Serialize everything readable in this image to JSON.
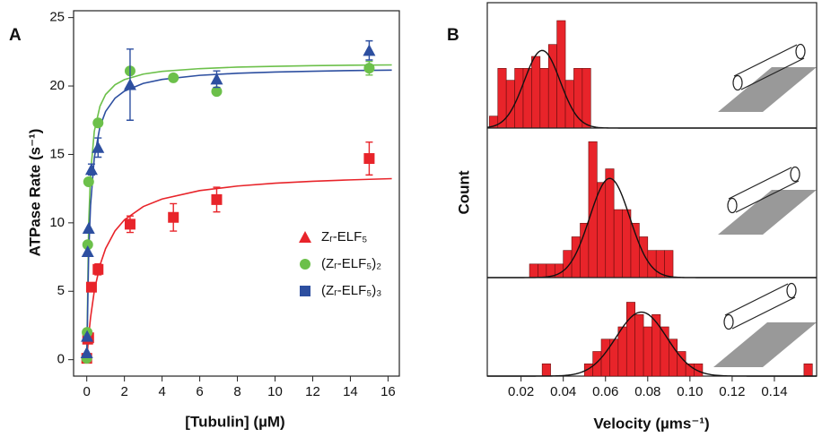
{
  "chart_data": [
    {
      "type": "scatter",
      "panel_label": "A",
      "x_label": "[Tubulin] (µM)",
      "y_label": "ATPase Rate (s⁻¹)",
      "xlim": [
        -0.7,
        16.6
      ],
      "ylim": [
        -1.2,
        25.5
      ],
      "xticks": [
        0,
        2,
        4,
        6,
        8,
        10,
        12,
        14,
        16
      ],
      "yticks": [
        0,
        5,
        10,
        15,
        20,
        25
      ],
      "series": [
        {
          "name": "Zᵣ-ELF₅",
          "color": "#e8242a",
          "marker": "triangle-legend-square",
          "x": [
            0,
            0.05,
            0.1,
            0.25,
            0.6,
            2.3,
            4.6,
            6.9,
            15
          ],
          "values": [
            0.1,
            1.5,
            1.6,
            5.3,
            6.6,
            9.9,
            10.4,
            11.7,
            14.7
          ],
          "errors": [
            null,
            0.3,
            0.3,
            0.3,
            0.4,
            0.6,
            1.0,
            0.9,
            1.2
          ],
          "fit": {
            "x": [
              0,
              0.1,
              0.2,
              0.4,
              0.7,
              1,
              1.5,
              2,
              3,
              4,
              6,
              8,
              10,
              12,
              14,
              16.2
            ],
            "values": [
              0,
              1.73,
              3.07,
              5.02,
              6.9,
              8.12,
              9.41,
              10.22,
              11.19,
              11.74,
              12.36,
              12.69,
              12.9,
              13.04,
              13.14,
              13.23
            ]
          }
        },
        {
          "name": "(Zᵣ-ELF₅)₂",
          "color": "#6cc04a",
          "marker": "circle",
          "x": [
            0,
            0.02,
            0.05,
            0.1,
            0.6,
            2.3,
            4.6,
            6.9,
            15
          ],
          "values": [
            0.1,
            2.0,
            8.4,
            13.0,
            17.3,
            21.1,
            20.6,
            19.6,
            21.3
          ],
          "errors": [
            null,
            null,
            null,
            null,
            null,
            null,
            null,
            null,
            0.5
          ],
          "fit": {
            "x": [
              0,
              0.1,
              0.2,
              0.4,
              0.7,
              1,
              1.5,
              2,
              3,
              4,
              6,
              8,
              10,
              12,
              14,
              16.2
            ],
            "values": [
              0,
              9.86,
              13.56,
              16.69,
              18.52,
              19.38,
              20.09,
              20.47,
              20.87,
              21.07,
              21.27,
              21.38,
              21.44,
              21.49,
              21.52,
              21.54
            ]
          }
        },
        {
          "name": "(Zᵣ-ELF₅)₃",
          "color": "#2d4fa0",
          "marker": "triangle",
          "x": [
            0,
            0.02,
            0.05,
            0.1,
            0.25,
            0.6,
            2.3,
            6.9,
            15
          ],
          "values": [
            0.5,
            1.7,
            7.9,
            9.6,
            13.9,
            15.5,
            20.1,
            20.5,
            22.6
          ],
          "errors": [
            null,
            null,
            null,
            null,
            0.4,
            0.7,
            2.6,
            0.6,
            0.7
          ],
          "fit": {
            "x": [
              0,
              0.1,
              0.2,
              0.4,
              0.7,
              1,
              1.5,
              2,
              3,
              4,
              6,
              8,
              10,
              12,
              14,
              16.2
            ],
            "values": [
              0,
              7.64,
              11.26,
              14.76,
              17.02,
              18.14,
              19.11,
              19.63,
              20.19,
              20.48,
              20.78,
              20.93,
              21.02,
              21.08,
              21.13,
              21.16
            ]
          }
        }
      ]
    },
    {
      "type": "histogram",
      "panel_label": "B",
      "x_label": "Velocity (µms⁻¹)",
      "y_label": "Count",
      "color": "#e8242a",
      "xlim": [
        0.004,
        0.16
      ],
      "xticks": [
        0.02,
        0.04,
        0.06,
        0.08,
        {
          "value": 0.1,
          "label": "0.10"
        },
        0.12,
        0.14
      ],
      "histograms": [
        {
          "bins": [
            0.005,
            0.009,
            0.013,
            0.017,
            0.021,
            0.025,
            0.029,
            0.033,
            0.037,
            0.041,
            0.045,
            0.049,
            0.053
          ],
          "counts": [
            1,
            5,
            4,
            5,
            5,
            6,
            5,
            7,
            9,
            4,
            5,
            5
          ],
          "ylim": [
            0,
            10.5
          ],
          "fit": {
            "mean": 0.03,
            "sd": 0.0085,
            "peak": 6.5
          }
        },
        {
          "bins": [
            0.024,
            0.028,
            0.032,
            0.036,
            0.04,
            0.044,
            0.048,
            0.052,
            0.056,
            0.06,
            0.064,
            0.068,
            0.072,
            0.076,
            0.08,
            0.084,
            0.088,
            0.092
          ],
          "counts": [
            1,
            1,
            1,
            1,
            2,
            3,
            4,
            10,
            7,
            8,
            5,
            5,
            4,
            3,
            2,
            2,
            2
          ],
          "ylim": [
            0,
            11
          ],
          "fit": {
            "mean": 0.062,
            "sd": 0.0095,
            "peak": 7.3
          }
        },
        {
          "bins": [
            0.03,
            0.034,
            0.038,
            0.042,
            0.046,
            0.05,
            0.054,
            0.058,
            0.062,
            0.066,
            0.07,
            0.074,
            0.078,
            0.082,
            0.086,
            0.09,
            0.094,
            0.098,
            0.102,
            0.106,
            0.11,
            0.114,
            0.118,
            0.122,
            0.126,
            0.13,
            0.134,
            0.138,
            0.142,
            0.146,
            0.15,
            0.154,
            0.158
          ],
          "counts": [
            1,
            0,
            0,
            0,
            0,
            1,
            2,
            3,
            3,
            4,
            6,
            5,
            4,
            5,
            4,
            3,
            2,
            1,
            1,
            0,
            0,
            0,
            0,
            0,
            0,
            0,
            0,
            0,
            0,
            0,
            0,
            1
          ],
          "ylim": [
            0,
            8
          ],
          "fit": {
            "mean": 0.077,
            "sd": 0.012,
            "peak": 5.2
          }
        }
      ]
    }
  ]
}
